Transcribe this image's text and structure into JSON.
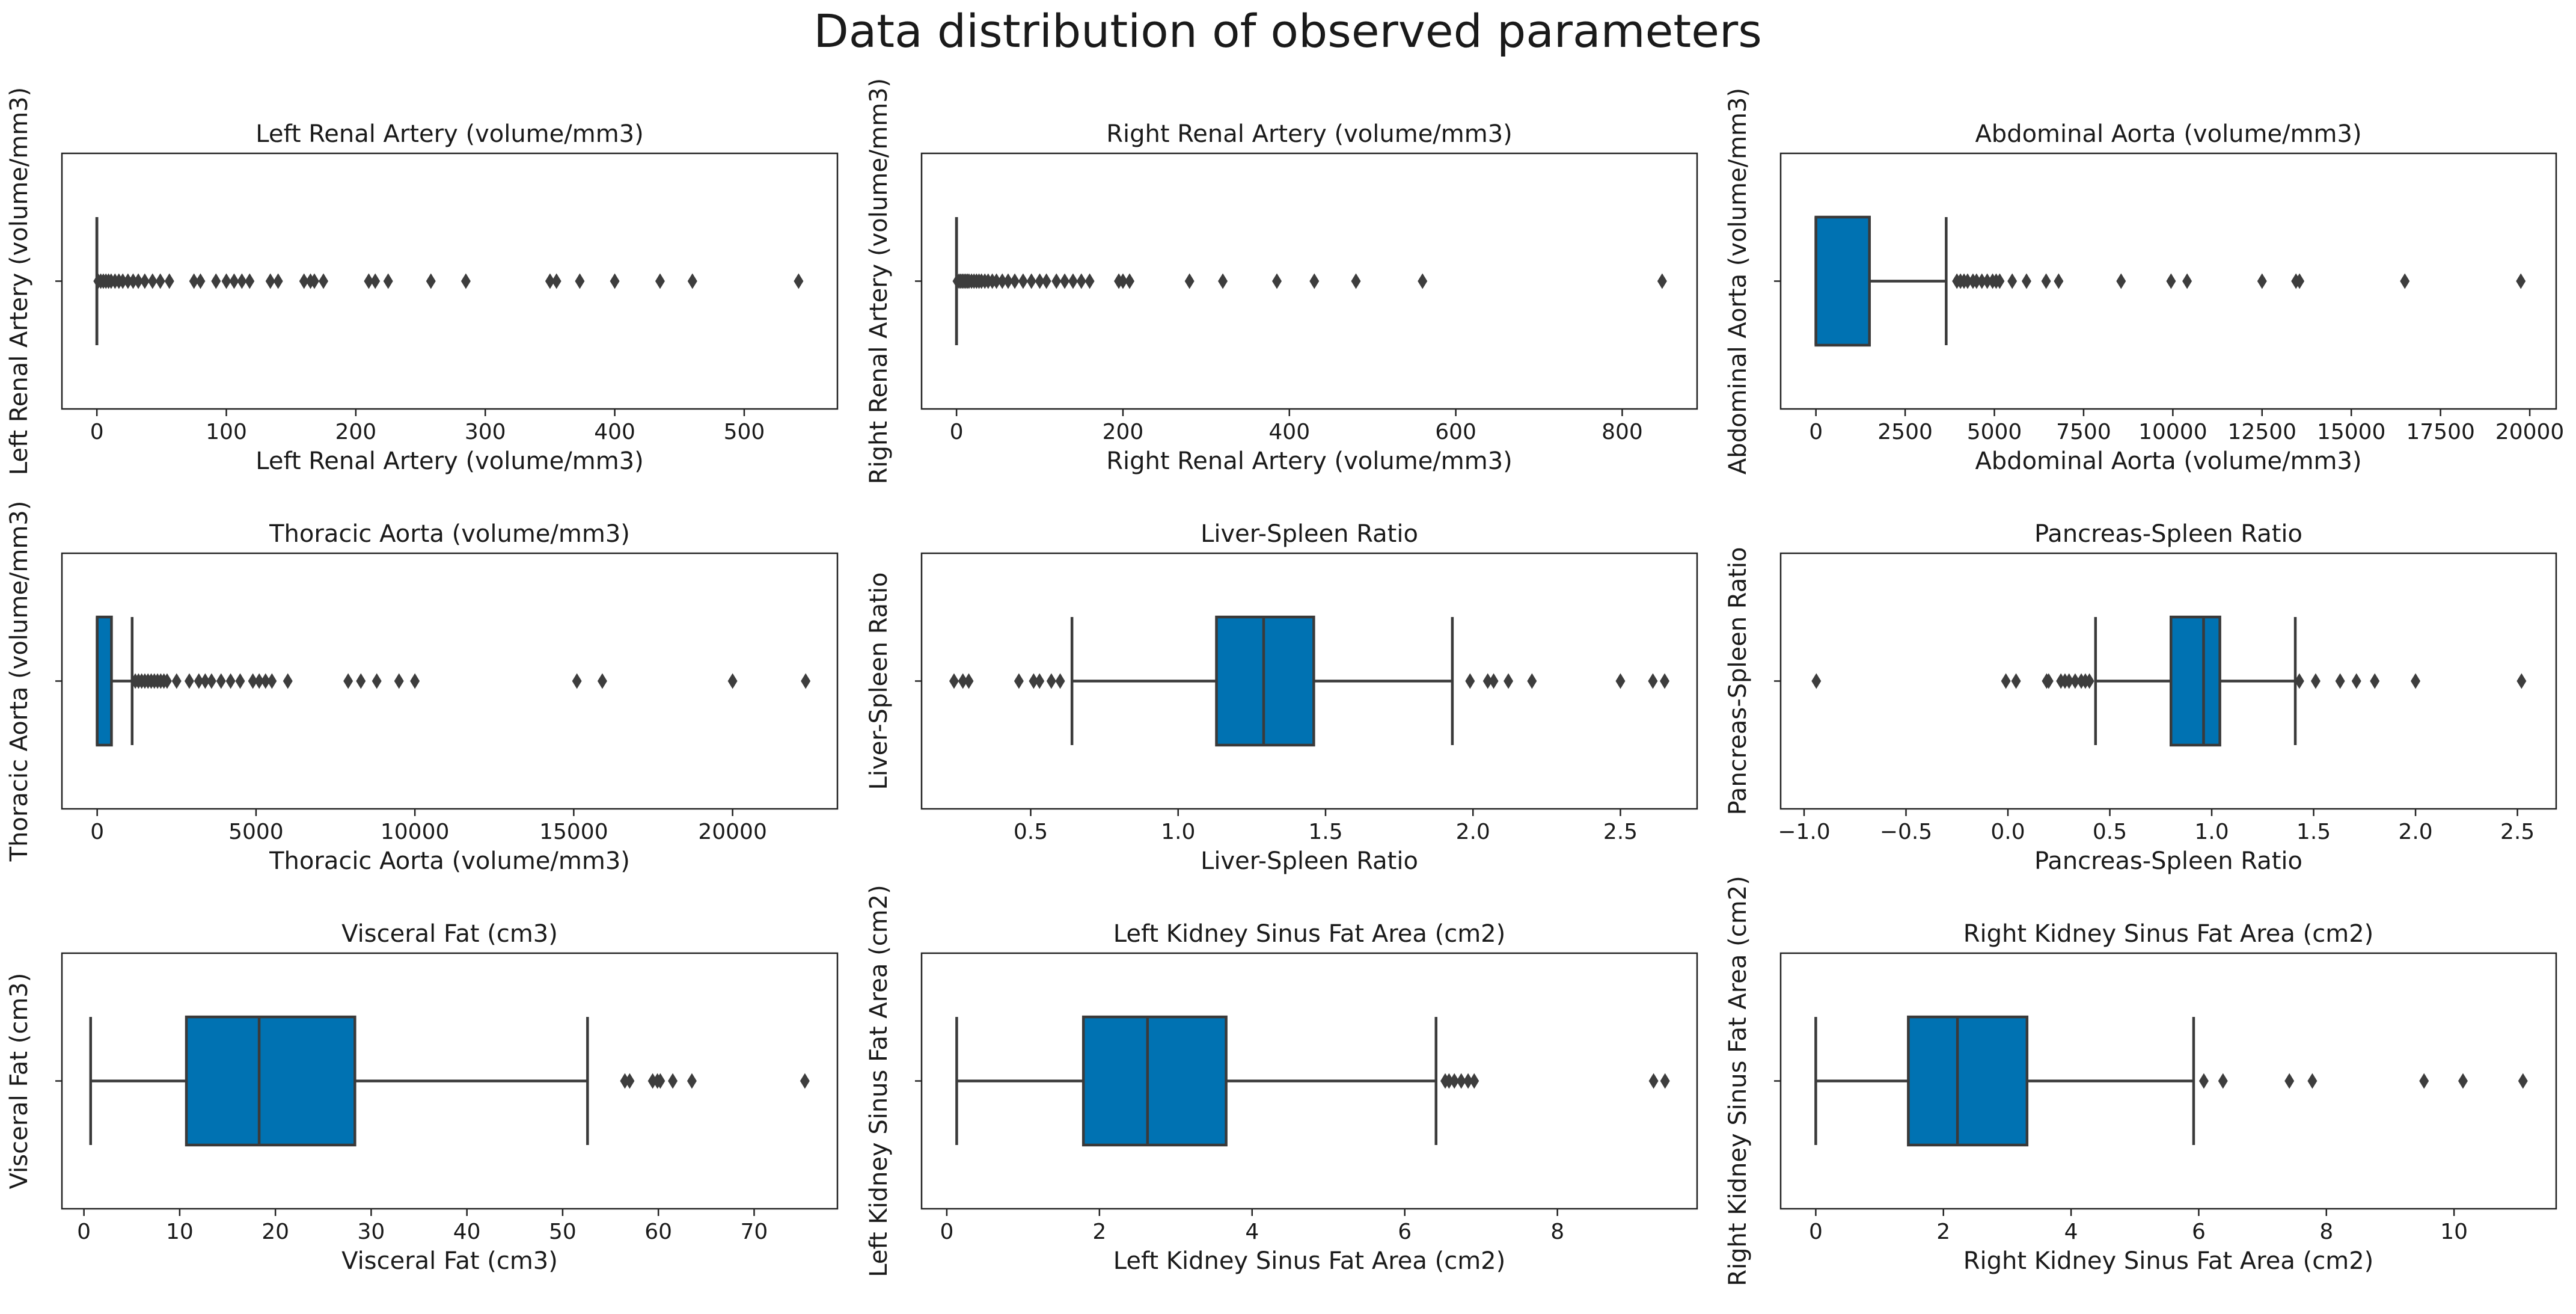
{
  "chart_data": {
    "title": "Data distribution of observed parameters",
    "box_color": "#0072b2",
    "line_color": "#3a3a3a",
    "panels": [
      {
        "type": "boxplot",
        "title": "Left Renal Artery (volume/mm3)",
        "xlabel": "Left Renal Artery (volume/mm3)",
        "ylabel": "Left Renal Artery (volume/mm3)",
        "xlim": [
          -27,
          572
        ],
        "xticks": [
          0,
          100,
          200,
          300,
          400,
          500
        ],
        "xtick_labels": [
          "0",
          "100",
          "200",
          "300",
          "400",
          "500"
        ],
        "stats": {
          "whisker_low": 0,
          "q1": 0,
          "median": 0,
          "q3": 0,
          "whisker_high": 0
        },
        "outliers": [
          1,
          3,
          5,
          7,
          9,
          11,
          14,
          17,
          20,
          24,
          28,
          32,
          37,
          43,
          49,
          56,
          75,
          80,
          92,
          100,
          106,
          112,
          118,
          134,
          140,
          160,
          165,
          168,
          175,
          210,
          215,
          225,
          258,
          285,
          350,
          355,
          373,
          400,
          435,
          460,
          542
        ]
      },
      {
        "type": "boxplot",
        "title": "Right Renal Artery (volume/mm3)",
        "xlabel": "Right Renal Artery (volume/mm3)",
        "ylabel": "Right Renal Artery (volume/mm3)",
        "xlim": [
          -42,
          890
        ],
        "xticks": [
          0,
          200,
          400,
          600,
          800
        ],
        "xtick_labels": [
          "0",
          "200",
          "400",
          "600",
          "800"
        ],
        "stats": {
          "whisker_low": 0,
          "q1": 0,
          "median": 0,
          "q3": 0,
          "whisker_high": 0
        },
        "outliers": [
          1,
          3,
          5,
          7,
          9,
          11,
          13,
          15,
          18,
          21,
          24,
          27,
          30,
          34,
          38,
          43,
          48,
          55,
          62,
          70,
          80,
          90,
          100,
          108,
          120,
          130,
          140,
          150,
          160,
          195,
          200,
          208,
          280,
          320,
          385,
          430,
          480,
          560,
          848
        ]
      },
      {
        "type": "boxplot",
        "title": "Abdominal Aorta (volume/mm3)",
        "xlabel": "Abdominal Aorta (volume/mm3)",
        "ylabel": "Abdominal Aorta (volume/mm3)",
        "xlim": [
          -988,
          20740
        ],
        "xticks": [
          0,
          2500,
          5000,
          7500,
          10000,
          12500,
          15000,
          17500,
          20000
        ],
        "xtick_labels": [
          "0",
          "2500",
          "5000",
          "7500",
          "10000",
          "12500",
          "15000",
          "17500",
          "20000"
        ],
        "stats": {
          "whisker_low": 0,
          "q1": 0,
          "median": 0,
          "q3": 1500,
          "whisker_high": 3650
        },
        "outliers": [
          3950,
          4050,
          4150,
          4250,
          4400,
          4500,
          4650,
          4800,
          4950,
          5050,
          5150,
          5500,
          5900,
          6450,
          6800,
          8550,
          9950,
          10400,
          12500,
          13450,
          13550,
          16500,
          19750
        ]
      },
      {
        "type": "boxplot",
        "title": "Thoracic Aorta (volume/mm3)",
        "xlabel": "Thoracic Aorta (volume/mm3)",
        "ylabel": "Thoracic Aorta (volume/mm3)",
        "xlim": [
          -1110,
          23300
        ],
        "xticks": [
          0,
          5000,
          10000,
          15000,
          20000
        ],
        "xtick_labels": [
          "0",
          "5000",
          "10000",
          "15000",
          "20000"
        ],
        "stats": {
          "whisker_low": 0,
          "q1": 0,
          "median": 0,
          "q3": 450,
          "whisker_high": 1100
        },
        "outliers": [
          1200,
          1300,
          1400,
          1500,
          1600,
          1700,
          1800,
          1900,
          2000,
          2100,
          2200,
          2500,
          2900,
          3200,
          3400,
          3600,
          3900,
          4200,
          4500,
          4900,
          5100,
          5300,
          5500,
          6000,
          7900,
          8300,
          8800,
          9500,
          10000,
          15100,
          15900,
          20000,
          22300
        ]
      },
      {
        "type": "boxplot",
        "title": "Liver-Spleen Ratio",
        "xlabel": "Liver-Spleen Ratio",
        "ylabel": "Liver-Spleen Ratio",
        "xlim": [
          0.13,
          2.76
        ],
        "xticks": [
          0.5,
          1.0,
          1.5,
          2.0,
          2.5
        ],
        "xtick_labels": [
          "0.5",
          "1.0",
          "1.5",
          "2.0",
          "2.5"
        ],
        "stats": {
          "whisker_low": 0.64,
          "q1": 1.13,
          "median": 1.29,
          "q3": 1.46,
          "whisker_high": 1.93
        },
        "outliers": [
          0.24,
          0.27,
          0.29,
          0.46,
          0.51,
          0.53,
          0.57,
          0.6,
          1.99,
          2.05,
          2.07,
          2.12,
          2.2,
          2.5,
          2.61,
          2.65
        ]
      },
      {
        "type": "boxplot",
        "title": "Pancreas-Spleen Ratio",
        "xlabel": "Pancreas-Spleen Ratio",
        "ylabel": "Pancreas-Spleen Ratio",
        "xlim": [
          -1.115,
          2.69
        ],
        "xticks": [
          -1.0,
          -0.5,
          0.0,
          0.5,
          1.0,
          1.5,
          2.0,
          2.5
        ],
        "xtick_labels": [
          "−1.0",
          "−0.5",
          "0.0",
          "0.5",
          "1.0",
          "1.5",
          "2.0",
          "2.5"
        ],
        "stats": {
          "whisker_low": 0.43,
          "q1": 0.8,
          "median": 0.96,
          "q3": 1.04,
          "whisker_high": 1.41
        },
        "outliers": [
          -0.94,
          -0.01,
          0.04,
          0.19,
          0.2,
          0.26,
          0.28,
          0.3,
          0.33,
          0.36,
          0.38,
          0.4,
          1.43,
          1.51,
          1.63,
          1.71,
          1.8,
          2.0,
          2.52
        ]
      },
      {
        "type": "boxplot",
        "title": "Visceral Fat (cm3)",
        "xlabel": "Visceral Fat (cm3)",
        "ylabel": "Visceral Fat (cm3)",
        "xlim": [
          -2.3,
          78.7
        ],
        "xticks": [
          0,
          10,
          20,
          30,
          40,
          50,
          60,
          70
        ],
        "xtick_labels": [
          "0",
          "10",
          "20",
          "30",
          "40",
          "50",
          "60",
          "70"
        ],
        "stats": {
          "whisker_low": 0.7,
          "q1": 10.7,
          "median": 18.3,
          "q3": 28.3,
          "whisker_high": 52.6
        },
        "outliers": [
          56.5,
          57.0,
          59.4,
          59.9,
          60.2,
          61.5,
          63.5,
          75.3
        ]
      },
      {
        "type": "boxplot",
        "title": "Left Kidney Sinus Fat Area (cm2)",
        "xlabel": "Left Kidney Sinus Fat Area (cm2)",
        "ylabel": "Left Kidney Sinus Fat Area (cm2)",
        "xlim": [
          -0.33,
          9.83
        ],
        "xticks": [
          0,
          2,
          4,
          6,
          8
        ],
        "xtick_labels": [
          "0",
          "2",
          "4",
          "6",
          "8"
        ],
        "stats": {
          "whisker_low": 0.13,
          "q1": 1.79,
          "median": 2.63,
          "q3": 3.66,
          "whisker_high": 6.41
        },
        "outliers": [
          6.53,
          6.58,
          6.65,
          6.74,
          6.83,
          6.91,
          9.26,
          9.41
        ]
      },
      {
        "type": "boxplot",
        "title": "Right Kidney Sinus Fat Area (cm2)",
        "xlabel": "Right Kidney Sinus Fat Area (cm2)",
        "ylabel": "Right Kidney Sinus Fat Area (cm2)",
        "xlim": [
          -0.55,
          11.6
        ],
        "xticks": [
          0,
          2,
          4,
          6,
          8,
          10
        ],
        "xtick_labels": [
          "0",
          "2",
          "4",
          "6",
          "8",
          "10"
        ],
        "stats": {
          "whisker_low": 0.0,
          "q1": 1.45,
          "median": 2.22,
          "q3": 3.31,
          "whisker_high": 5.92
        },
        "outliers": [
          6.08,
          6.38,
          7.42,
          7.78,
          9.53,
          10.14,
          11.08
        ]
      }
    ]
  }
}
